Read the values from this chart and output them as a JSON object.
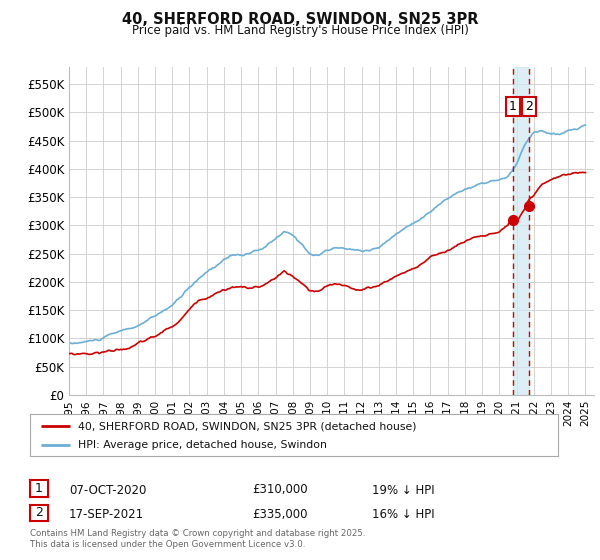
{
  "title": "40, SHERFORD ROAD, SWINDON, SN25 3PR",
  "subtitle": "Price paid vs. HM Land Registry's House Price Index (HPI)",
  "ylabel_ticks": [
    "£0",
    "£50K",
    "£100K",
    "£150K",
    "£200K",
    "£250K",
    "£300K",
    "£350K",
    "£400K",
    "£450K",
    "£500K",
    "£550K"
  ],
  "ytick_values": [
    0,
    50000,
    100000,
    150000,
    200000,
    250000,
    300000,
    350000,
    400000,
    450000,
    500000,
    550000
  ],
  "ylim": [
    0,
    580000
  ],
  "xlim_start": 1995.0,
  "xlim_end": 2025.5,
  "xtick_years": [
    1995,
    1996,
    1997,
    1998,
    1999,
    2000,
    2001,
    2002,
    2003,
    2004,
    2005,
    2006,
    2007,
    2008,
    2009,
    2010,
    2011,
    2012,
    2013,
    2014,
    2015,
    2016,
    2017,
    2018,
    2019,
    2020,
    2021,
    2022,
    2023,
    2024,
    2025
  ],
  "hpi_color": "#6baed6",
  "price_color": "#cc0000",
  "marker1_date": 2020.77,
  "marker1_price": 310000,
  "marker2_date": 2021.72,
  "marker2_price": 335000,
  "vline_color": "#cc0000",
  "vfill_color": "#d0e8f5",
  "legend_line1": "40, SHERFORD ROAD, SWINDON, SN25 3PR (detached house)",
  "legend_line2": "HPI: Average price, detached house, Swindon",
  "table_row1": [
    "1",
    "07-OCT-2020",
    "£310,000",
    "19% ↓ HPI"
  ],
  "table_row2": [
    "2",
    "17-SEP-2021",
    "£335,000",
    "16% ↓ HPI"
  ],
  "footer": "Contains HM Land Registry data © Crown copyright and database right 2025.\nThis data is licensed under the Open Government Licence v3.0.",
  "background_color": "#ffffff",
  "grid_color": "#cccccc"
}
